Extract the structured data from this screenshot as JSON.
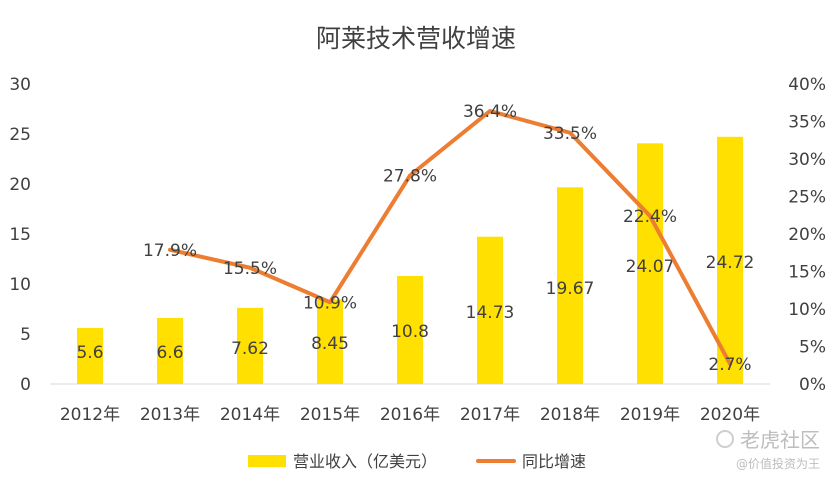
{
  "chart_data": {
    "type": "bar",
    "title": "阿莱技术营收增速",
    "categories": [
      "2012年",
      "2013年",
      "2014年",
      "2015年",
      "2016年",
      "2017年",
      "2018年",
      "2019年",
      "2020年"
    ],
    "series": [
      {
        "name": "营业收入（亿美元）",
        "type": "bar",
        "axis": "left",
        "values": [
          5.6,
          6.6,
          7.62,
          8.45,
          10.8,
          14.73,
          19.67,
          24.07,
          24.72
        ],
        "labels": [
          "5.6",
          "6.6",
          "7.62",
          "8.45",
          "10.8",
          "14.73",
          "19.67",
          "24.07",
          "24.72"
        ],
        "color": "#FFE000"
      },
      {
        "name": "同比增速",
        "type": "line",
        "axis": "right",
        "values": [
          null,
          17.9,
          15.5,
          10.9,
          27.8,
          36.4,
          33.5,
          22.4,
          2.7
        ],
        "labels": [
          "",
          "17.9%",
          "15.5%",
          "10.9%",
          "27.8%",
          "36.4%",
          "33.5%",
          "22.4%",
          "2.7%"
        ],
        "color": "#ED7D31"
      }
    ],
    "y_left": {
      "min": 0,
      "max": 30,
      "ticks": [
        "0",
        "5",
        "10",
        "15",
        "20",
        "25",
        "30"
      ]
    },
    "y_right": {
      "min": 0,
      "max": 40,
      "ticks": [
        "0%",
        "5%",
        "10%",
        "15%",
        "20%",
        "25%",
        "30%",
        "35%",
        "40%"
      ]
    },
    "grid": false,
    "legend_position": "bottom"
  },
  "watermark": {
    "brand": "老虎社区",
    "author": "@价值投资为王"
  }
}
